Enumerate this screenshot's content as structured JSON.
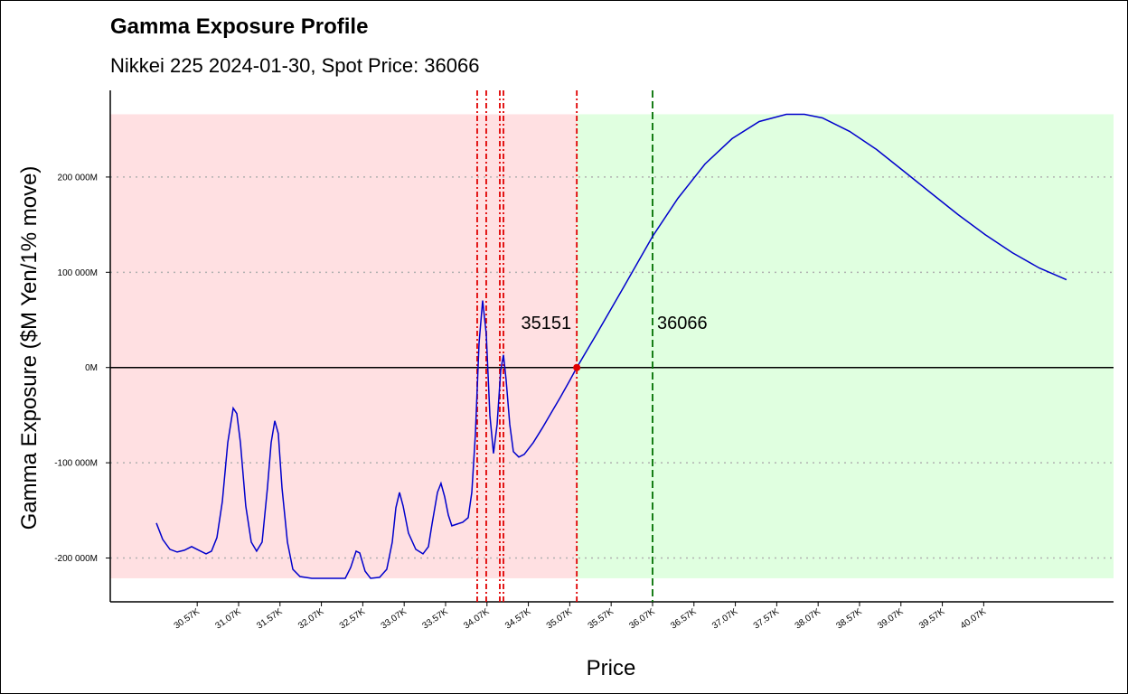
{
  "chart_data": {
    "type": "line",
    "title": "Gamma Exposure Profile",
    "subtitle": "Nikkei 225 2024-01-30, Spot Price: 36066",
    "x_label": "Price",
    "y_label": "Gamma Exposure ($M Yen/1% move)",
    "xlim": [
      29516,
      41634
    ],
    "ylim": [
      -246000,
      291000
    ],
    "xticks": [
      {
        "value": 30566,
        "label": "30.57K"
      },
      {
        "value": 31066,
        "label": "31.07K"
      },
      {
        "value": 31566,
        "label": "31.57K"
      },
      {
        "value": 32066,
        "label": "32.07K"
      },
      {
        "value": 32566,
        "label": "32.57K"
      },
      {
        "value": 33066,
        "label": "33.07K"
      },
      {
        "value": 33566,
        "label": "33.57K"
      },
      {
        "value": 34066,
        "label": "34.07K"
      },
      {
        "value": 34566,
        "label": "34.57K"
      },
      {
        "value": 35066,
        "label": "35.07K"
      },
      {
        "value": 35566,
        "label": "35.57K"
      },
      {
        "value": 36066,
        "label": "36.07K"
      },
      {
        "value": 36566,
        "label": "36.57K"
      },
      {
        "value": 37066,
        "label": "37.07K"
      },
      {
        "value": 37566,
        "label": "37.57K"
      },
      {
        "value": 38066,
        "label": "38.07K"
      },
      {
        "value": 38566,
        "label": "38.57K"
      },
      {
        "value": 39066,
        "label": "39.07K"
      },
      {
        "value": 39566,
        "label": "39.57K"
      },
      {
        "value": 40066,
        "label": "40.07K"
      }
    ],
    "yticks": [
      {
        "value": -200000,
        "label": "-200 000M"
      },
      {
        "value": -100000,
        "label": "-100 000M"
      },
      {
        "value": 0,
        "label": "0M"
      },
      {
        "value": 100000,
        "label": "100 000M"
      },
      {
        "value": 200000,
        "label": "200 000M"
      }
    ],
    "grid": true,
    "negative_shade": "#ffe0e2",
    "positive_shade": "#e0ffe0",
    "red_lines": [
      33948,
      34057,
      34221,
      34265
    ],
    "red_line_color": "#e00000",
    "flip_point": {
      "x": 35151,
      "y": 0
    },
    "spot_price": 36066,
    "spot_color": "#007000",
    "series": [
      {
        "color": "#0000cc",
        "x": [
          30073,
          30149,
          30236,
          30324,
          30411,
          30498,
          30586,
          30673,
          30739,
          30804,
          30870,
          30935,
          31001,
          31044,
          31088,
          31153,
          31219,
          31284,
          31350,
          31415,
          31459,
          31503,
          31546,
          31590,
          31656,
          31721,
          31808,
          31950,
          32354,
          32420,
          32485,
          32529,
          32594,
          32660,
          32769,
          32856,
          32922,
          32966,
          33009,
          33053,
          33118,
          33206,
          33293,
          33359,
          33402,
          33468,
          33511,
          33555,
          33599,
          33642,
          33708,
          33773,
          33839,
          33883,
          33926,
          33970,
          34014,
          34057,
          34101,
          34145,
          34188,
          34232,
          34265,
          34297,
          34341,
          34385,
          34450,
          34516,
          34625,
          34734,
          34843,
          34952,
          35062,
          35151,
          35389,
          35717,
          36066,
          36372,
          36699,
          37027,
          37354,
          37682,
          37900,
          38118,
          38446,
          38773,
          39101,
          39428,
          39756,
          40083,
          40411,
          40738,
          41066
        ],
        "values": [
          -163300,
          -180400,
          -190900,
          -193700,
          -191800,
          -188000,
          -191800,
          -195600,
          -192800,
          -178500,
          -140600,
          -78800,
          -42700,
          -48400,
          -78800,
          -145300,
          -183300,
          -192800,
          -183300,
          -126300,
          -78800,
          -56000,
          -69300,
          -126300,
          -183300,
          -211800,
          -219400,
          -221300,
          -221300,
          -209900,
          -192800,
          -194700,
          -213700,
          -221300,
          -220300,
          -211800,
          -183300,
          -147200,
          -131100,
          -145300,
          -173800,
          -190900,
          -195600,
          -188000,
          -164300,
          -131100,
          -121600,
          -135800,
          -154800,
          -166200,
          -164300,
          -162400,
          -157600,
          -131100,
          -69300,
          25600,
          70300,
          35100,
          -50300,
          -90200,
          -59800,
          -2800,
          13300,
          -12300,
          -59800,
          -88300,
          -94000,
          -91200,
          -78800,
          -63600,
          -47500,
          -31300,
          -14200,
          0,
          35100,
          84500,
          137700,
          177600,
          213700,
          240300,
          258300,
          265900,
          265900,
          262100,
          247900,
          228900,
          206100,
          183300,
          160500,
          139600,
          120600,
          104500,
          92100
        ]
      }
    ]
  }
}
